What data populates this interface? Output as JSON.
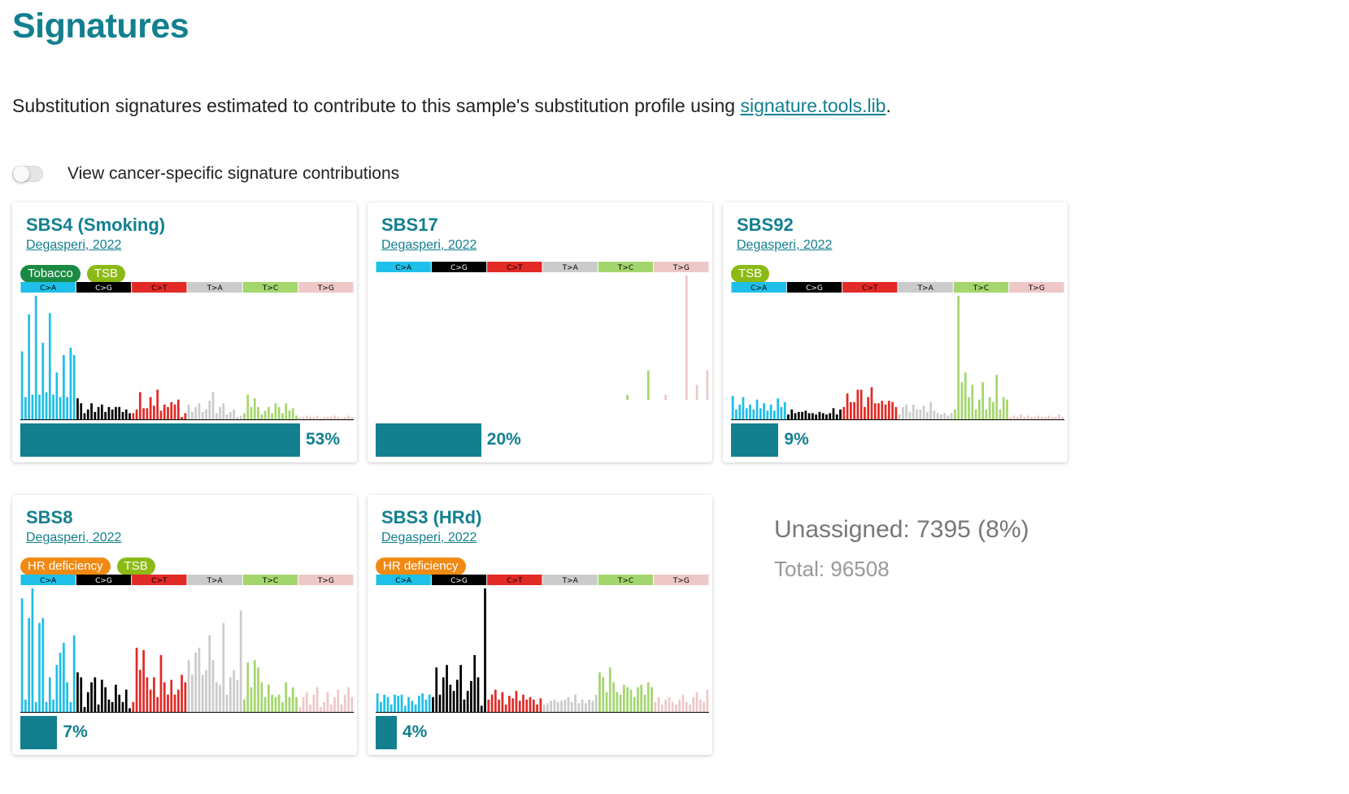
{
  "page": {
    "title": "Signatures",
    "description_prefix": "Substitution signatures estimated to contribute to this sample's substitution profile using ",
    "description_link": "signature.tools.lib",
    "description_suffix": ".",
    "toggle_label": "View cancer-specific signature contributions",
    "toggle_on": false
  },
  "mutation_classes": [
    {
      "label": "C>A",
      "color": "#1ebfe8",
      "text_color": "#000000"
    },
    {
      "label": "C>G",
      "color": "#000000",
      "text_color": "#ffffff"
    },
    {
      "label": "C>T",
      "color": "#e22a26",
      "text_color": "#000000"
    },
    {
      "label": "T>A",
      "color": "#cbcbcb",
      "text_color": "#000000"
    },
    {
      "label": "T>C",
      "color": "#a4d66e",
      "text_color": "#000000"
    },
    {
      "label": "T>G",
      "color": "#eec8c7",
      "text_color": "#000000"
    }
  ],
  "tag_colors": {
    "Tobacco": "#1a8a42",
    "TSB": "#8cba14",
    "HR deficiency": "#f08a14"
  },
  "cards": [
    {
      "name": "SBS4 (Smoking)",
      "reference": "Degasperi, 2022",
      "tags": [
        "Tobacco",
        "TSB"
      ],
      "percent": 53,
      "percent_label": "53%",
      "profile": [
        0.55,
        0.18,
        0.85,
        0.2,
        1.0,
        0.2,
        0.62,
        0.22,
        0.86,
        0.2,
        0.38,
        0.18,
        0.52,
        0.18,
        0.58,
        0.52,
        0.17,
        0.13,
        0.05,
        0.08,
        0.13,
        0.06,
        0.1,
        0.12,
        0.06,
        0.1,
        0.08,
        0.1,
        0.1,
        0.06,
        0.08,
        0.05,
        0.05,
        0.08,
        0.22,
        0.09,
        0.09,
        0.18,
        0.11,
        0.24,
        0.07,
        0.12,
        0.1,
        0.14,
        0.12,
        0.16,
        0.02,
        0.05,
        0.12,
        0.06,
        0.1,
        0.13,
        0.06,
        0.08,
        0.15,
        0.22,
        0.05,
        0.1,
        0.13,
        0.04,
        0.06,
        0.08,
        0.02,
        0.03,
        0.05,
        0.2,
        0.1,
        0.17,
        0.1,
        0.04,
        0.07,
        0.1,
        0.05,
        0.13,
        0.1,
        0.05,
        0.13,
        0.07,
        0.09,
        0.03,
        0.02,
        0.02,
        0.03,
        0.02,
        0.02,
        0.03,
        0.01,
        0.02,
        0.02,
        0.02,
        0.03,
        0.02,
        0.01,
        0.02,
        0.03,
        0.02
      ]
    },
    {
      "name": "SBS17",
      "reference": "Degasperi, 2022",
      "tags": [],
      "percent": 20,
      "percent_label": "20%",
      "profile": [
        0.02,
        0.03,
        0.02,
        0.03,
        0.02,
        0.03,
        0.02,
        0.02,
        0.04,
        0.03,
        0.02,
        0.04,
        0.02,
        0.03,
        0.02,
        0.03,
        0.01,
        0.02,
        0.01,
        0.02,
        0.01,
        0.02,
        0.01,
        0.02,
        0.01,
        0.01,
        0.02,
        0.01,
        0.02,
        0.01,
        0.02,
        0.01,
        0.03,
        0.02,
        0.03,
        0.04,
        0.03,
        0.03,
        0.02,
        0.03,
        0.04,
        0.03,
        0.02,
        0.03,
        0.03,
        0.02,
        0.04,
        0.02,
        0.01,
        0.02,
        0.03,
        0.02,
        0.03,
        0.01,
        0.02,
        0.03,
        0.02,
        0.11,
        0.02,
        0.02,
        0.01,
        0.02,
        0.01,
        0.02,
        0.02,
        0.03,
        0.02,
        0.05,
        0.03,
        0.02,
        0.03,
        0.03,
        0.17,
        0.03,
        0.04,
        0.03,
        0.04,
        0.05,
        0.34,
        0.02,
        0.02,
        0.02,
        0.01,
        0.17,
        0.03,
        0.02,
        0.01,
        0.02,
        0.02,
        1.0,
        0.02,
        0.02,
        0.24,
        0.03,
        0.02,
        0.34
      ]
    },
    {
      "name": "SBS92",
      "reference": "Degasperi, 2022",
      "tags": [
        "TSB"
      ],
      "percent": 9,
      "percent_label": "9%",
      "profile": [
        0.19,
        0.08,
        0.12,
        0.18,
        0.09,
        0.12,
        0.08,
        0.16,
        0.09,
        0.13,
        0.07,
        0.12,
        0.07,
        0.17,
        0.1,
        0.14,
        0.04,
        0.08,
        0.05,
        0.06,
        0.06,
        0.07,
        0.05,
        0.05,
        0.04,
        0.06,
        0.05,
        0.04,
        0.05,
        0.09,
        0.04,
        0.08,
        0.1,
        0.21,
        0.14,
        0.14,
        0.24,
        0.24,
        0.1,
        0.18,
        0.26,
        0.13,
        0.13,
        0.15,
        0.12,
        0.15,
        0.14,
        0.1,
        0.04,
        0.1,
        0.12,
        0.06,
        0.12,
        0.08,
        0.08,
        0.11,
        0.06,
        0.14,
        0.07,
        0.05,
        0.04,
        0.05,
        0.03,
        0.05,
        0.08,
        1.0,
        0.3,
        0.38,
        0.18,
        0.28,
        0.08,
        0.16,
        0.3,
        0.08,
        0.18,
        0.14,
        0.36,
        0.08,
        0.18,
        0.16,
        0.02,
        0.03,
        0.02,
        0.04,
        0.02,
        0.03,
        0.02,
        0.02,
        0.03,
        0.02,
        0.02,
        0.03,
        0.02,
        0.02,
        0.04,
        0.02
      ]
    },
    {
      "name": "SBS8",
      "reference": "Degasperi, 2022",
      "tags": [
        "HR deficiency",
        "TSB"
      ],
      "percent": 7,
      "percent_label": "7%",
      "profile": [
        0.92,
        0.1,
        0.76,
        1.0,
        0.08,
        0.72,
        0.76,
        0.08,
        0.28,
        0.1,
        0.38,
        0.48,
        0.56,
        0.24,
        0.08,
        0.62,
        0.32,
        0.28,
        0.04,
        0.16,
        0.24,
        0.28,
        0.06,
        0.26,
        0.2,
        0.1,
        0.08,
        0.22,
        0.14,
        0.08,
        0.18,
        0.03,
        0.08,
        0.52,
        0.34,
        0.5,
        0.28,
        0.18,
        0.28,
        0.12,
        0.46,
        0.24,
        0.14,
        0.26,
        0.14,
        0.18,
        0.3,
        0.24,
        0.42,
        0.3,
        0.48,
        0.52,
        0.3,
        0.34,
        0.62,
        0.42,
        0.24,
        0.22,
        0.72,
        0.14,
        0.28,
        0.34,
        0.26,
        0.82,
        0.1,
        0.4,
        0.2,
        0.42,
        0.36,
        0.24,
        0.12,
        0.22,
        0.14,
        0.12,
        0.14,
        0.08,
        0.24,
        0.12,
        0.2,
        0.12,
        0.04,
        0.12,
        0.16,
        0.06,
        0.14,
        0.2,
        0.04,
        0.08,
        0.16,
        0.06,
        0.12,
        0.18,
        0.06,
        0.14,
        0.2,
        0.12
      ]
    },
    {
      "name": "SBS3 (HRd)",
      "reference": "Degasperi, 2022",
      "tags": [
        "HR deficiency"
      ],
      "percent": 4,
      "percent_label": "4%",
      "profile": [
        0.15,
        0.08,
        0.14,
        0.12,
        0.06,
        0.14,
        0.13,
        0.14,
        0.05,
        0.12,
        0.09,
        0.06,
        0.13,
        0.15,
        0.1,
        0.14,
        0.12,
        0.36,
        0.14,
        0.28,
        0.38,
        0.22,
        0.17,
        0.26,
        0.38,
        0.1,
        0.17,
        0.25,
        0.46,
        0.28,
        0.05,
        1.0,
        0.1,
        0.14,
        0.18,
        0.1,
        0.16,
        0.06,
        0.13,
        0.11,
        0.17,
        0.09,
        0.14,
        0.1,
        0.12,
        0.1,
        0.06,
        0.11,
        0.06,
        0.07,
        0.09,
        0.1,
        0.08,
        0.09,
        0.1,
        0.12,
        0.08,
        0.14,
        0.07,
        0.1,
        0.07,
        0.1,
        0.09,
        0.14,
        0.32,
        0.28,
        0.16,
        0.36,
        0.24,
        0.16,
        0.14,
        0.22,
        0.2,
        0.18,
        0.12,
        0.2,
        0.22,
        0.14,
        0.24,
        0.2,
        0.08,
        0.12,
        0.06,
        0.1,
        0.12,
        0.08,
        0.06,
        0.1,
        0.14,
        0.08,
        0.06,
        0.12,
        0.16,
        0.1,
        0.08,
        0.18
      ]
    }
  ],
  "summary": {
    "unassigned": "Unassigned: 7395 (8%)",
    "total": "Total: 96508"
  }
}
